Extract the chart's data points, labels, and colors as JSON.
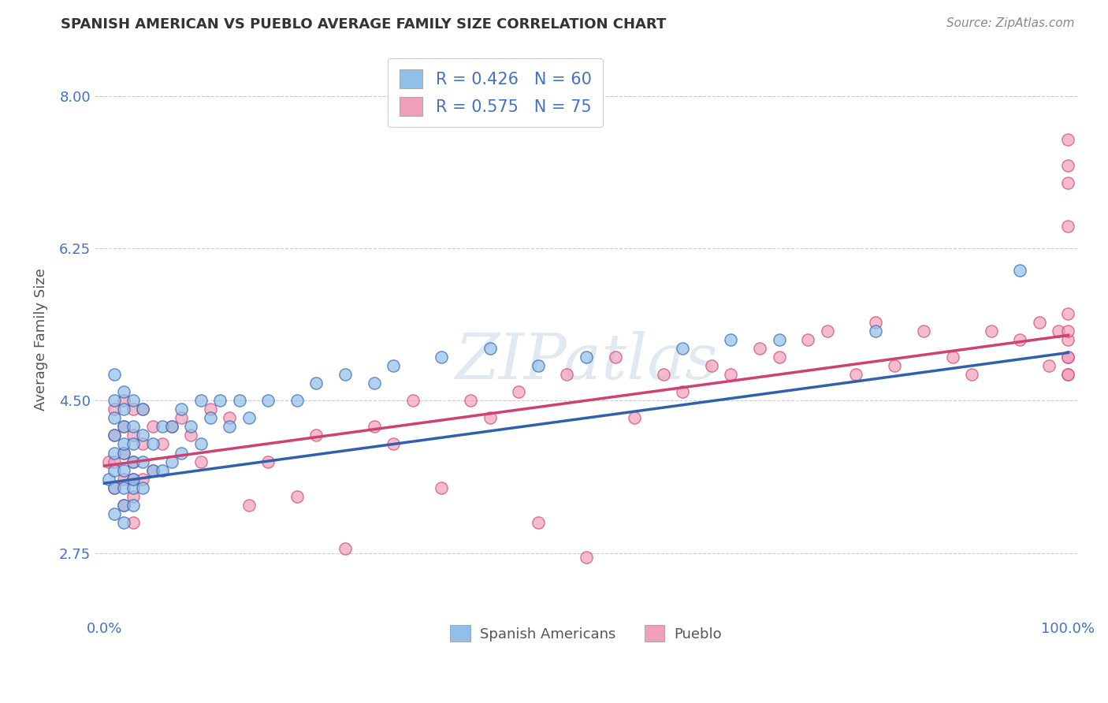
{
  "title": "SPANISH AMERICAN VS PUEBLO AVERAGE FAMILY SIZE CORRELATION CHART",
  "source": "Source: ZipAtlas.com",
  "ylabel": "Average Family Size",
  "legend1_label": "Spanish Americans",
  "legend2_label": "Pueblo",
  "r1": 0.426,
  "n1": 60,
  "r2": 0.575,
  "n2": 75,
  "ylim_min": 2.0,
  "ylim_max": 8.4,
  "xlim_min": -1,
  "xlim_max": 101,
  "yticks": [
    2.75,
    4.5,
    6.25,
    8.0
  ],
  "xtick_labels": [
    "0.0%",
    "100.0%"
  ],
  "color_blue": "#90c0e8",
  "color_pink": "#f0a0b8",
  "color_blue_line": "#3060b0",
  "color_pink_line": "#d04070",
  "color_axis_text": "#4472c4",
  "color_title": "#333333",
  "color_source": "#888888",
  "background_color": "#ffffff",
  "blue_x": [
    0.5,
    1,
    1,
    1,
    1,
    1,
    1,
    1,
    1,
    2,
    2,
    2,
    2,
    2,
    2,
    2,
    2,
    2,
    3,
    3,
    3,
    3,
    3,
    3,
    3,
    4,
    4,
    4,
    4,
    5,
    5,
    6,
    6,
    7,
    7,
    8,
    8,
    9,
    10,
    10,
    11,
    12,
    13,
    14,
    15,
    17,
    20,
    22,
    25,
    28,
    30,
    35,
    40,
    45,
    50,
    60,
    65,
    70,
    80,
    95
  ],
  "blue_y": [
    3.6,
    3.2,
    3.5,
    3.7,
    3.9,
    4.1,
    4.3,
    4.5,
    4.8,
    3.1,
    3.3,
    3.5,
    3.7,
    3.9,
    4.0,
    4.2,
    4.4,
    4.6,
    3.3,
    3.5,
    3.6,
    3.8,
    4.0,
    4.2,
    4.5,
    3.5,
    3.8,
    4.1,
    4.4,
    3.7,
    4.0,
    3.7,
    4.2,
    3.8,
    4.2,
    3.9,
    4.4,
    4.2,
    4.0,
    4.5,
    4.3,
    4.5,
    4.2,
    4.5,
    4.3,
    4.5,
    4.5,
    4.7,
    4.8,
    4.7,
    4.9,
    5.0,
    5.1,
    4.9,
    5.0,
    5.1,
    5.2,
    5.2,
    5.3,
    6.0
  ],
  "pink_x": [
    0.5,
    1,
    1,
    1,
    1,
    2,
    2,
    2,
    2,
    2,
    3,
    3,
    3,
    3,
    3,
    3,
    4,
    4,
    4,
    5,
    5,
    6,
    7,
    8,
    9,
    10,
    11,
    13,
    15,
    17,
    20,
    22,
    25,
    28,
    30,
    32,
    35,
    38,
    40,
    43,
    45,
    48,
    50,
    53,
    55,
    58,
    60,
    63,
    65,
    68,
    70,
    73,
    75,
    78,
    80,
    82,
    85,
    88,
    90,
    92,
    95,
    97,
    98,
    99,
    100,
    100,
    100,
    100,
    100,
    100,
    100,
    100,
    100,
    100,
    100
  ],
  "pink_y": [
    3.8,
    3.5,
    3.8,
    4.1,
    4.4,
    3.3,
    3.6,
    3.9,
    4.2,
    4.5,
    3.1,
    3.4,
    3.6,
    3.8,
    4.1,
    4.4,
    3.6,
    4.0,
    4.4,
    3.7,
    4.2,
    4.0,
    4.2,
    4.3,
    4.1,
    3.8,
    4.4,
    4.3,
    3.3,
    3.8,
    3.4,
    4.1,
    2.8,
    4.2,
    4.0,
    4.5,
    3.5,
    4.5,
    4.3,
    4.6,
    3.1,
    4.8,
    2.7,
    5.0,
    4.3,
    4.8,
    4.6,
    4.9,
    4.8,
    5.1,
    5.0,
    5.2,
    5.3,
    4.8,
    5.4,
    4.9,
    5.3,
    5.0,
    4.8,
    5.3,
    5.2,
    5.4,
    4.9,
    5.3,
    4.8,
    5.0,
    5.2,
    5.5,
    7.0,
    7.5,
    4.8,
    6.5,
    7.2,
    5.0,
    5.3
  ],
  "line_blue_x0": 0,
  "line_blue_y0": 3.55,
  "line_blue_x1": 100,
  "line_blue_y1": 5.05,
  "line_pink_x0": 0,
  "line_pink_y0": 3.75,
  "line_pink_x1": 100,
  "line_pink_y1": 5.25
}
